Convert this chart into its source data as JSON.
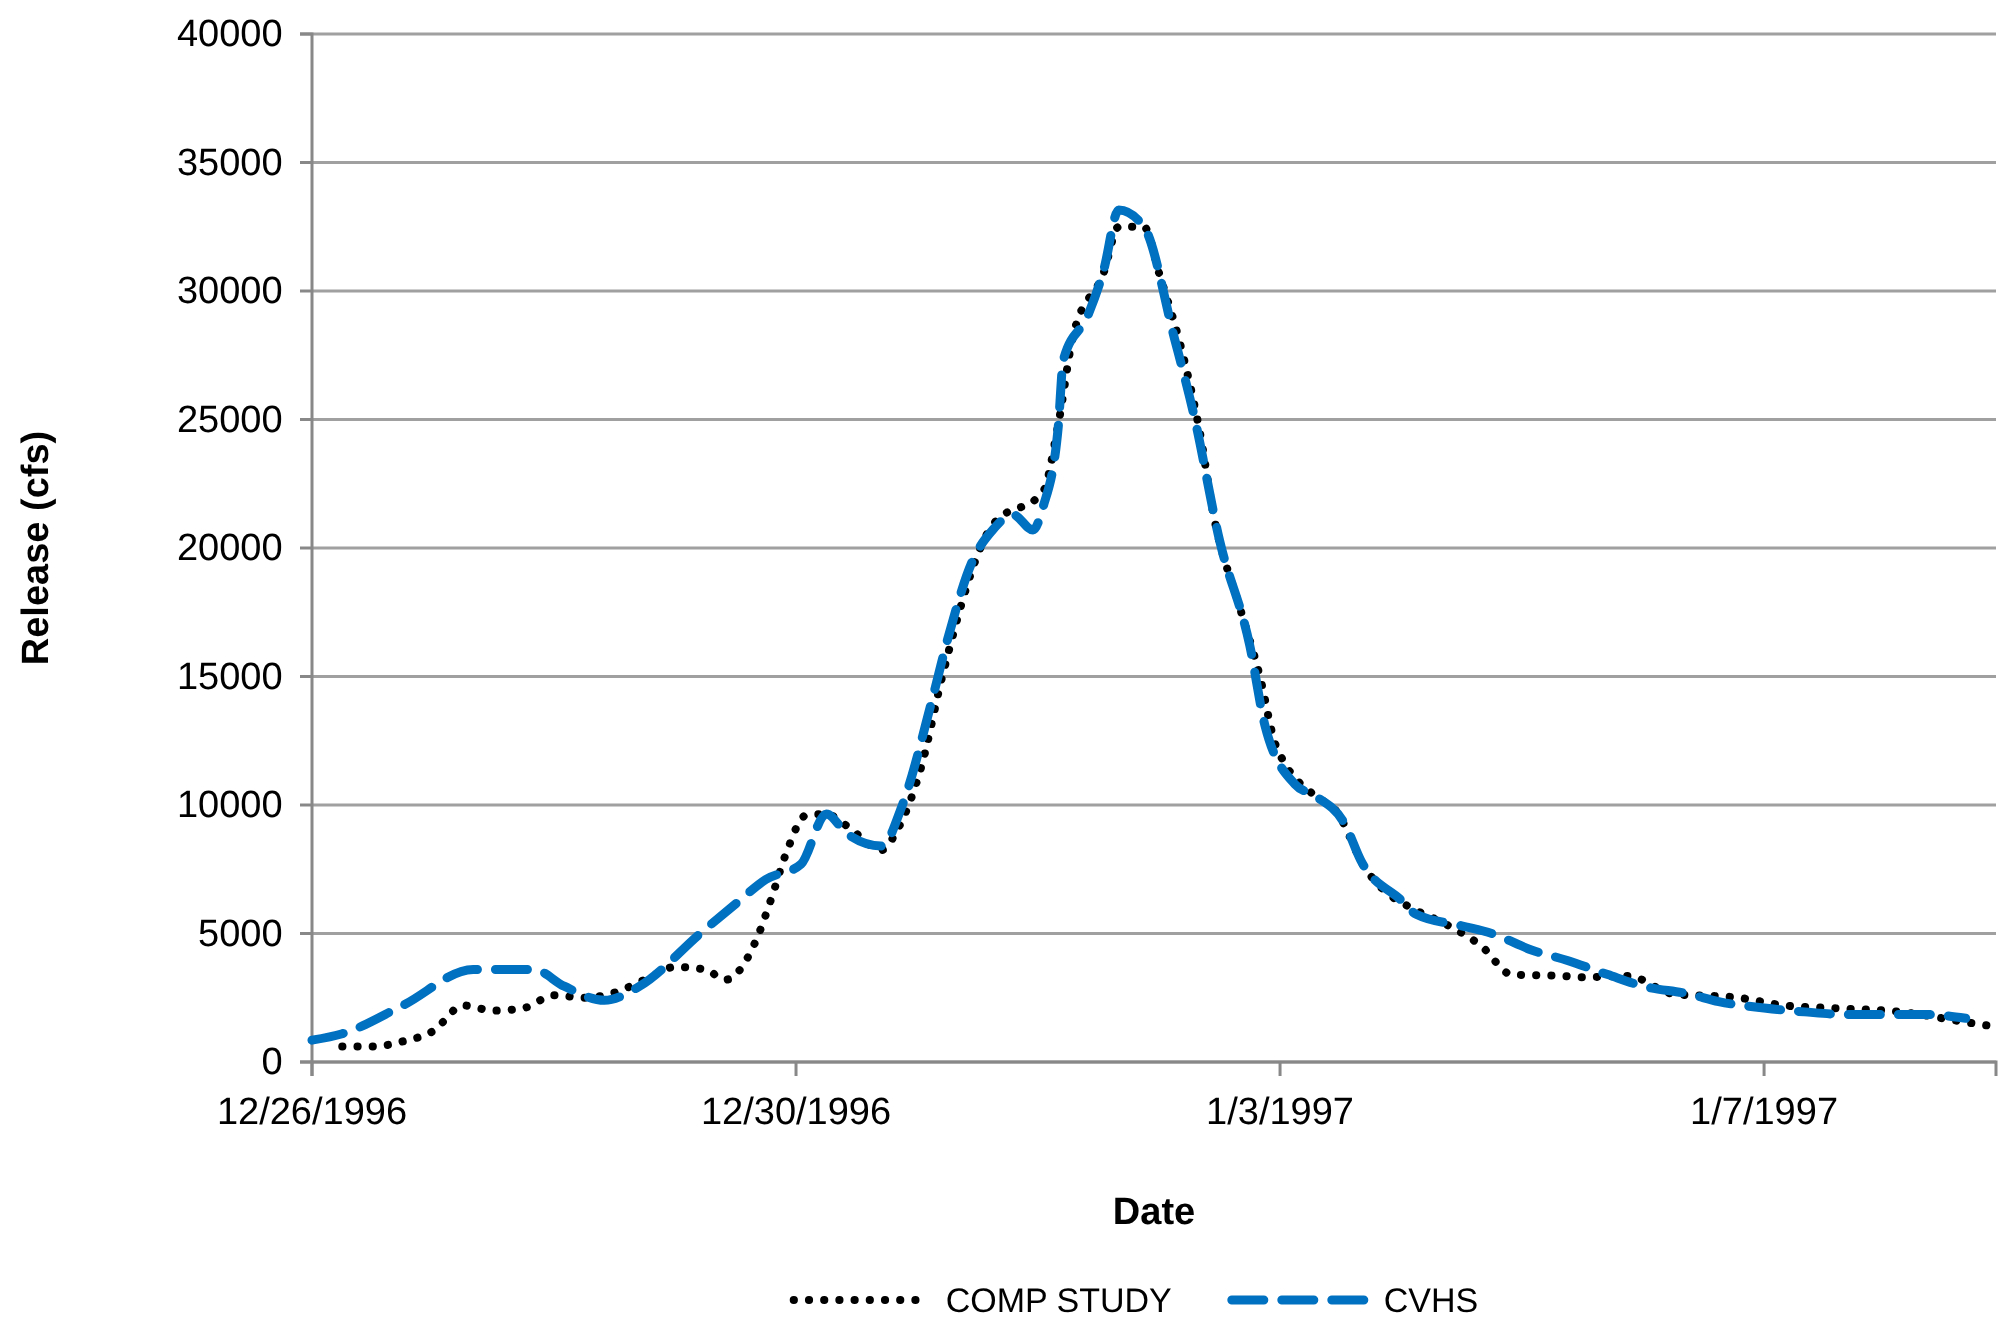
{
  "chart_data": {
    "type": "line",
    "xlabel": "Date",
    "ylabel": "Release (cfs)",
    "xlim": [
      "1996-12-26T00:00",
      "1997-01-08T22:00"
    ],
    "xticks": [
      {
        "value": "1996-12-26T00:00",
        "label": "12/26/1996"
      },
      {
        "value": "1996-12-30T00:00",
        "label": "12/30/1996"
      },
      {
        "value": "1997-01-03T00:00",
        "label": "1/3/1997"
      },
      {
        "value": "1997-01-07T00:00",
        "label": "1/7/1997"
      }
    ],
    "ylim": [
      0,
      40000
    ],
    "yticks": [
      0,
      5000,
      10000,
      15000,
      20000,
      25000,
      30000,
      35000,
      40000
    ],
    "grid": "y",
    "legend": "bottom",
    "series": [
      {
        "name": "COMP STUDY",
        "color": "#000000",
        "line_style": "dotted",
        "x": [
          "1996-12-26T06:00",
          "1996-12-26T12:00",
          "1996-12-26T18:00",
          "1996-12-27T00:00",
          "1996-12-27T06:00",
          "1996-12-27T12:00",
          "1996-12-27T18:00",
          "1996-12-28T00:00",
          "1996-12-28T06:00",
          "1996-12-28T12:00",
          "1996-12-28T18:00",
          "1996-12-29T00:00",
          "1996-12-29T06:00",
          "1996-12-29T10:00",
          "1996-12-29T16:00",
          "1996-12-29T19:00",
          "1996-12-29T22:00",
          "1996-12-30T02:00",
          "1996-12-30T06:00",
          "1996-12-30T10:00",
          "1996-12-30T17:00",
          "1996-12-30T20:00",
          "1996-12-31T01:00",
          "1996-12-31T05:00",
          "1996-12-31T15:00",
          "1997-01-01T01:00",
          "1997-01-01T04:00",
          "1997-01-01T07:00",
          "1997-01-01T13:00",
          "1997-01-01T16:00",
          "1997-01-01T21:00",
          "1997-01-02T00:00",
          "1997-01-02T05:00",
          "1997-01-02T08:00",
          "1997-01-02T11:00",
          "1997-01-02T16:00",
          "1997-01-02T20:00",
          "1997-01-02T23:00",
          "1997-01-03T01:00",
          "1997-01-03T07:00",
          "1997-01-03T11:00",
          "1997-01-03T17:00",
          "1997-01-03T20:00",
          "1997-01-04T03:00",
          "1997-01-04T08:00",
          "1997-01-04T16:00",
          "1997-01-04T22:00",
          "1997-01-05T08:00",
          "1997-01-05T12:00",
          "1997-01-05T21:00",
          "1997-01-06T06:00",
          "1997-01-06T19:00",
          "1997-01-07T04:00",
          "1997-01-07T13:00",
          "1997-01-08T03:00",
          "1997-01-08T16:00",
          "1997-01-08T21:00"
        ],
        "values": [
          600,
          600,
          800,
          1200,
          2200,
          2000,
          2100,
          2600,
          2500,
          2700,
          3200,
          3700,
          3600,
          3200,
          4700,
          6300,
          8100,
          9600,
          9650,
          9200,
          8250,
          9000,
          11600,
          15000,
          20900,
          22200,
          24800,
          28300,
          30700,
          32500,
          32500,
          30700,
          27300,
          24600,
          21100,
          17700,
          15000,
          12400,
          11600,
          10350,
          9800,
          7500,
          6800,
          5900,
          5450,
          4500,
          3400,
          3350,
          3300,
          3350,
          2650,
          2500,
          2200,
          2100,
          1950,
          1550,
          1400
        ]
      },
      {
        "name": "CVHS",
        "color": "#0070c0",
        "line_style": "dashed",
        "x": [
          "1996-12-26T00:00",
          "1996-12-26T06:00",
          "1996-12-26T18:00",
          "1996-12-27T08:00",
          "1996-12-27T20:00",
          "1996-12-28T02:00",
          "1996-12-28T10:00",
          "1996-12-28T17:00",
          "1996-12-29T05:00",
          "1996-12-29T12:00",
          "1996-12-29T18:00",
          "1996-12-30T01:00",
          "1996-12-30T06:00",
          "1996-12-30T10:00",
          "1996-12-30T17:00",
          "1996-12-30T21:00",
          "1996-12-31T03:00",
          "1996-12-31T06:00",
          "1996-12-31T11:00",
          "1996-12-31T15:00",
          "1996-12-31T19:00",
          "1996-12-31T23:00",
          "1997-01-01T01:00",
          "1997-01-01T04:00",
          "1997-01-01T05:00",
          "1997-01-01T10:00",
          "1997-01-01T13:00",
          "1997-01-01T16:00",
          "1997-01-01T21:00",
          "1997-01-02T03:00",
          "1997-01-02T07:00",
          "1997-01-02T12:00",
          "1997-01-02T18:00",
          "1997-01-02T21:00",
          "1997-01-03T03:00",
          "1997-01-03T07:00",
          "1997-01-03T13:00",
          "1997-01-03T16:00",
          "1997-01-04T00:00",
          "1997-01-04T03:00",
          "1997-01-04T12:00",
          "1997-01-04T18:00",
          "1997-01-05T02:00",
          "1997-01-05T09:00",
          "1997-01-05T17:00",
          "1997-01-06T00:00",
          "1997-01-06T09:00",
          "1997-01-06T15:00",
          "1997-01-07T00:00",
          "1997-01-07T08:00",
          "1997-01-07T16:00",
          "1997-01-07T23:00",
          "1997-01-08T08:00",
          "1997-01-08T16:00"
        ],
        "values": [
          850,
          1100,
          2200,
          3600,
          3600,
          2950,
          2400,
          2950,
          5000,
          6150,
          7100,
          7700,
          9650,
          8900,
          8400,
          9950,
          14100,
          16400,
          19500,
          20700,
          21300,
          20700,
          21600,
          24700,
          27300,
          29100,
          30800,
          33150,
          32500,
          28200,
          25100,
          20300,
          16200,
          13100,
          10800,
          10350,
          9200,
          7850,
          6300,
          5750,
          5300,
          5000,
          4350,
          3950,
          3400,
          2950,
          2650,
          2350,
          2100,
          1950,
          1850,
          1850,
          1850,
          1700
        ]
      }
    ]
  }
}
